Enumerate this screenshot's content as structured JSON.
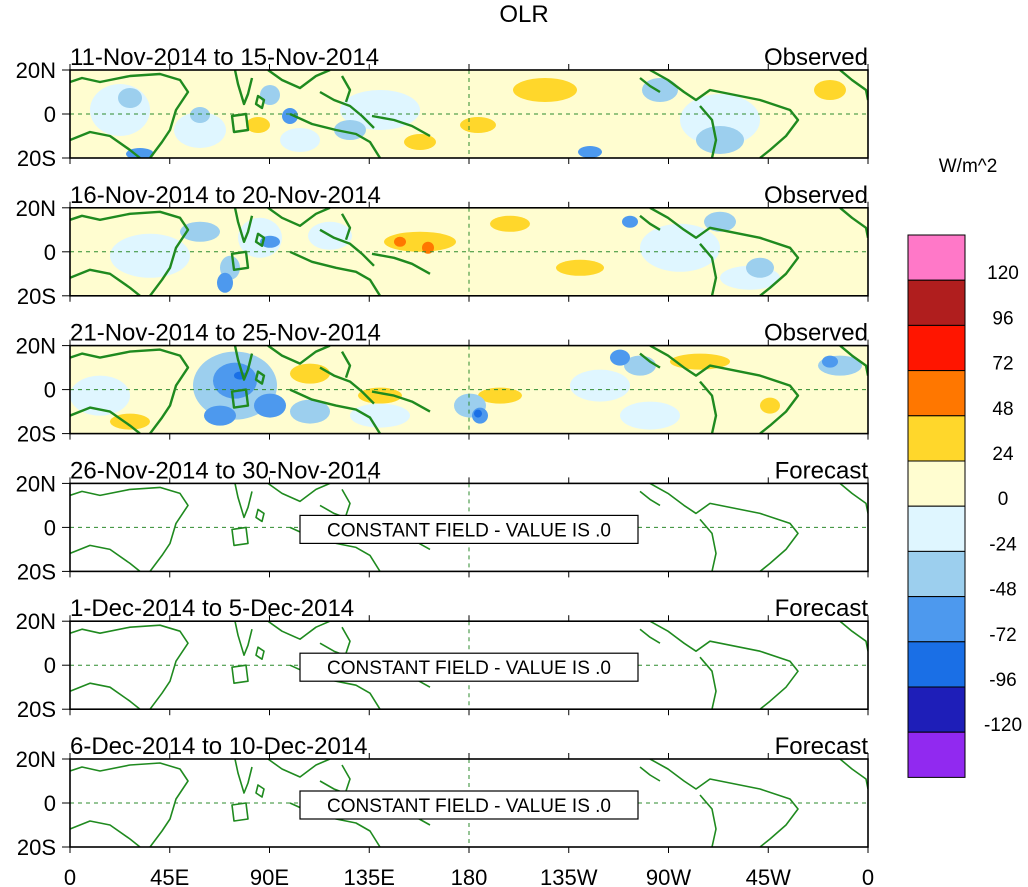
{
  "title": "OLR",
  "colorbar": {
    "units": "W/m^2",
    "colors": [
      "#9129f0",
      "#1e1eb8",
      "#1a6fe6",
      "#4d99ee",
      "#9ccfee",
      "#dff6ff",
      "#fffdd0",
      "#ffd72b",
      "#ff7700",
      "#ff1500",
      "#b01e1e",
      "#ff78c8"
    ],
    "labels": [
      "-120",
      "-96",
      "-72",
      "-48",
      "-24",
      "0",
      "24",
      "48",
      "72",
      "96",
      "120"
    ]
  },
  "axes": {
    "y_ticks": [
      "20N",
      "0",
      "20S"
    ],
    "x_ticks": [
      "0",
      "45E",
      "90E",
      "135E",
      "180",
      "135W",
      "90W",
      "45W",
      "0"
    ]
  },
  "panels": [
    {
      "period": "11-Nov-2014 to 15-Nov-2014",
      "type": "Observed",
      "note": ""
    },
    {
      "period": "16-Nov-2014 to 20-Nov-2014",
      "type": "Observed",
      "note": ""
    },
    {
      "period": "21-Nov-2014 to 25-Nov-2014",
      "type": "Observed",
      "note": ""
    },
    {
      "period": "26-Nov-2014 to 30-Nov-2014",
      "type": "Forecast",
      "note": "CONSTANT FIELD - VALUE IS .0"
    },
    {
      "period": "1-Dec-2014 to 5-Dec-2014",
      "type": "Forecast",
      "note": "CONSTANT FIELD - VALUE IS .0"
    },
    {
      "period": "6-Dec-2014 to 10-Dec-2014",
      "type": "Forecast",
      "note": "CONSTANT FIELD - VALUE IS .0"
    }
  ]
}
